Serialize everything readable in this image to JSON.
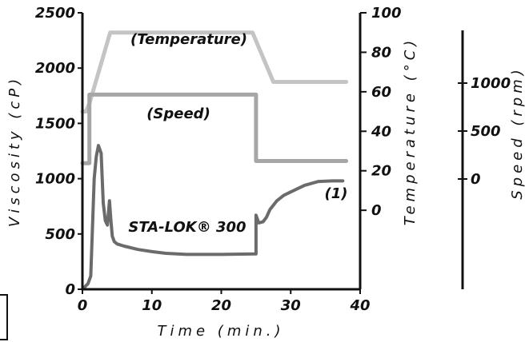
{
  "chart_data": {
    "type": "line",
    "xlabel": "Time (min.)",
    "x_ticks": [
      "0",
      "10",
      "20",
      "30",
      "40"
    ],
    "xlim": [
      0,
      40
    ],
    "axes": {
      "viscosity": {
        "label": "Viscosity (cP)",
        "ticks": [
          "0",
          "500",
          "1000",
          "1500",
          "2000",
          "2500"
        ],
        "lim": [
          0,
          2500
        ]
      },
      "temperature": {
        "label": "Temperature (°C)",
        "ticks": [
          "0",
          "20",
          "40",
          "60",
          "80",
          "100"
        ],
        "lim": [
          -40,
          100
        ]
      },
      "speed": {
        "label": "Speed (rpm)",
        "ticks": [
          "0",
          "500",
          "1000"
        ]
      }
    },
    "series": [
      {
        "name": "(Temperature)",
        "axis": "temperature",
        "color": "#c4c4c4",
        "x": [
          0,
          0.5,
          1,
          1.5,
          4,
          24.5,
          27.5,
          38
        ],
        "y": [
          50,
          50,
          54,
          60,
          90,
          90,
          65,
          65
        ]
      },
      {
        "name": "(Speed)",
        "axis": "viscosity",
        "color": "#a6a6a6",
        "x": [
          0,
          1,
          1,
          25,
          25,
          38
        ],
        "y": [
          1140,
          1140,
          1760,
          1760,
          1160,
          1160
        ]
      },
      {
        "name": "STA-LOK® 300",
        "annotation": "(1)",
        "axis": "viscosity",
        "color": "#6b6b6b",
        "x": [
          0,
          0.8,
          1.2,
          1.5,
          1.7,
          2.0,
          2.3,
          2.7,
          3.0,
          3.3,
          3.6,
          3.9,
          4.1,
          4.3,
          4.6,
          5,
          6,
          8,
          10,
          12,
          15,
          20,
          25,
          25,
          25.4,
          26,
          26.5,
          27,
          28,
          29,
          30,
          32,
          34,
          36,
          37.5
        ],
        "y": [
          0,
          50,
          120,
          650,
          1000,
          1200,
          1300,
          1230,
          780,
          620,
          580,
          800,
          620,
          480,
          430,
          410,
          390,
          360,
          340,
          325,
          315,
          315,
          320,
          670,
          600,
          610,
          650,
          720,
          800,
          850,
          880,
          940,
          975,
          980,
          980
        ]
      }
    ],
    "grid": false,
    "legend": "none"
  }
}
